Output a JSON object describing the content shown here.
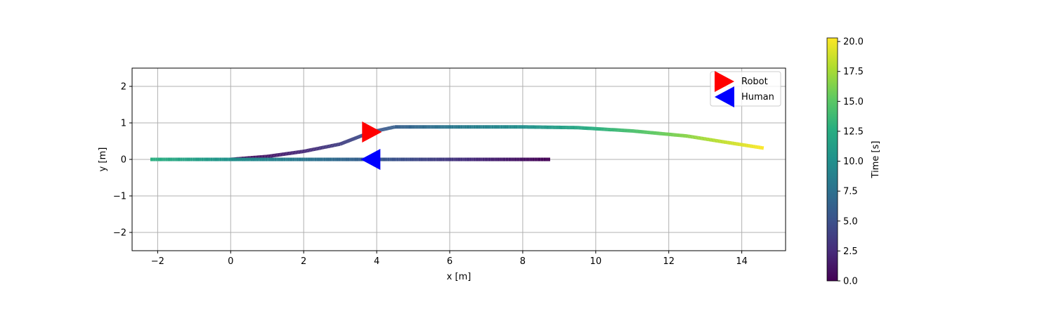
{
  "chart_data": {
    "type": "scatter",
    "title": "",
    "xlabel": "x [m]",
    "ylabel": "y [m]",
    "xlim": [
      -2.7,
      15.2
    ],
    "ylim": [
      -2.5,
      2.5
    ],
    "xticks": [
      -2,
      0,
      2,
      4,
      6,
      8,
      10,
      12,
      14
    ],
    "xtick_labels": [
      "−2",
      "0",
      "2",
      "4",
      "6",
      "8",
      "10",
      "12",
      "14"
    ],
    "yticks": [
      -2,
      -1,
      0,
      1,
      2
    ],
    "ytick_labels": [
      "−2",
      "−1",
      "0",
      "1",
      "2"
    ],
    "grid": true,
    "legend_position": "top-right",
    "series": [
      {
        "name": "Robot",
        "marker": "triangle-right",
        "marker_color": "#ff0000",
        "marker_point": {
          "x": 3.85,
          "y": 0.75
        },
        "path": [
          {
            "x": 0.0,
            "y": 0.0,
            "t": 0.0
          },
          {
            "x": 1.0,
            "y": 0.08,
            "t": 1.2
          },
          {
            "x": 2.0,
            "y": 0.22,
            "t": 2.4
          },
          {
            "x": 3.0,
            "y": 0.42,
            "t": 3.7
          },
          {
            "x": 3.85,
            "y": 0.75,
            "t": 5.0
          },
          {
            "x": 4.5,
            "y": 0.89,
            "t": 6.0
          },
          {
            "x": 6.0,
            "y": 0.89,
            "t": 8.0
          },
          {
            "x": 8.0,
            "y": 0.89,
            "t": 10.0
          },
          {
            "x": 9.5,
            "y": 0.87,
            "t": 12.0
          },
          {
            "x": 11.0,
            "y": 0.78,
            "t": 14.3
          },
          {
            "x": 12.5,
            "y": 0.64,
            "t": 16.6
          },
          {
            "x": 13.5,
            "y": 0.48,
            "t": 18.4
          },
          {
            "x": 14.6,
            "y": 0.31,
            "t": 20.3
          }
        ]
      },
      {
        "name": "Human",
        "marker": "triangle-left",
        "marker_color": "#0000ff",
        "marker_point": {
          "x": 3.85,
          "y": 0.0
        },
        "path": [
          {
            "x": 8.75,
            "y": 0.0,
            "t": 0.0
          },
          {
            "x": 7.0,
            "y": 0.0,
            "t": 2.0
          },
          {
            "x": 5.0,
            "y": 0.0,
            "t": 4.5
          },
          {
            "x": 3.0,
            "y": 0.0,
            "t": 6.8
          },
          {
            "x": 1.0,
            "y": 0.0,
            "t": 9.0
          },
          {
            "x": -1.0,
            "y": 0.0,
            "t": 11.4
          },
          {
            "x": -2.2,
            "y": 0.0,
            "t": 12.8
          }
        ]
      }
    ],
    "colorbar": {
      "label": "Time [s]",
      "min": 0.0,
      "max": 20.3,
      "ticks": [
        0.0,
        2.5,
        5.0,
        7.5,
        10.0,
        12.5,
        15.0,
        17.5,
        20.0
      ],
      "tick_labels": [
        "0.0",
        "2.5",
        "5.0",
        "7.5",
        "10.0",
        "12.5",
        "15.0",
        "17.5",
        "20.0"
      ],
      "colormap": "viridis"
    }
  }
}
